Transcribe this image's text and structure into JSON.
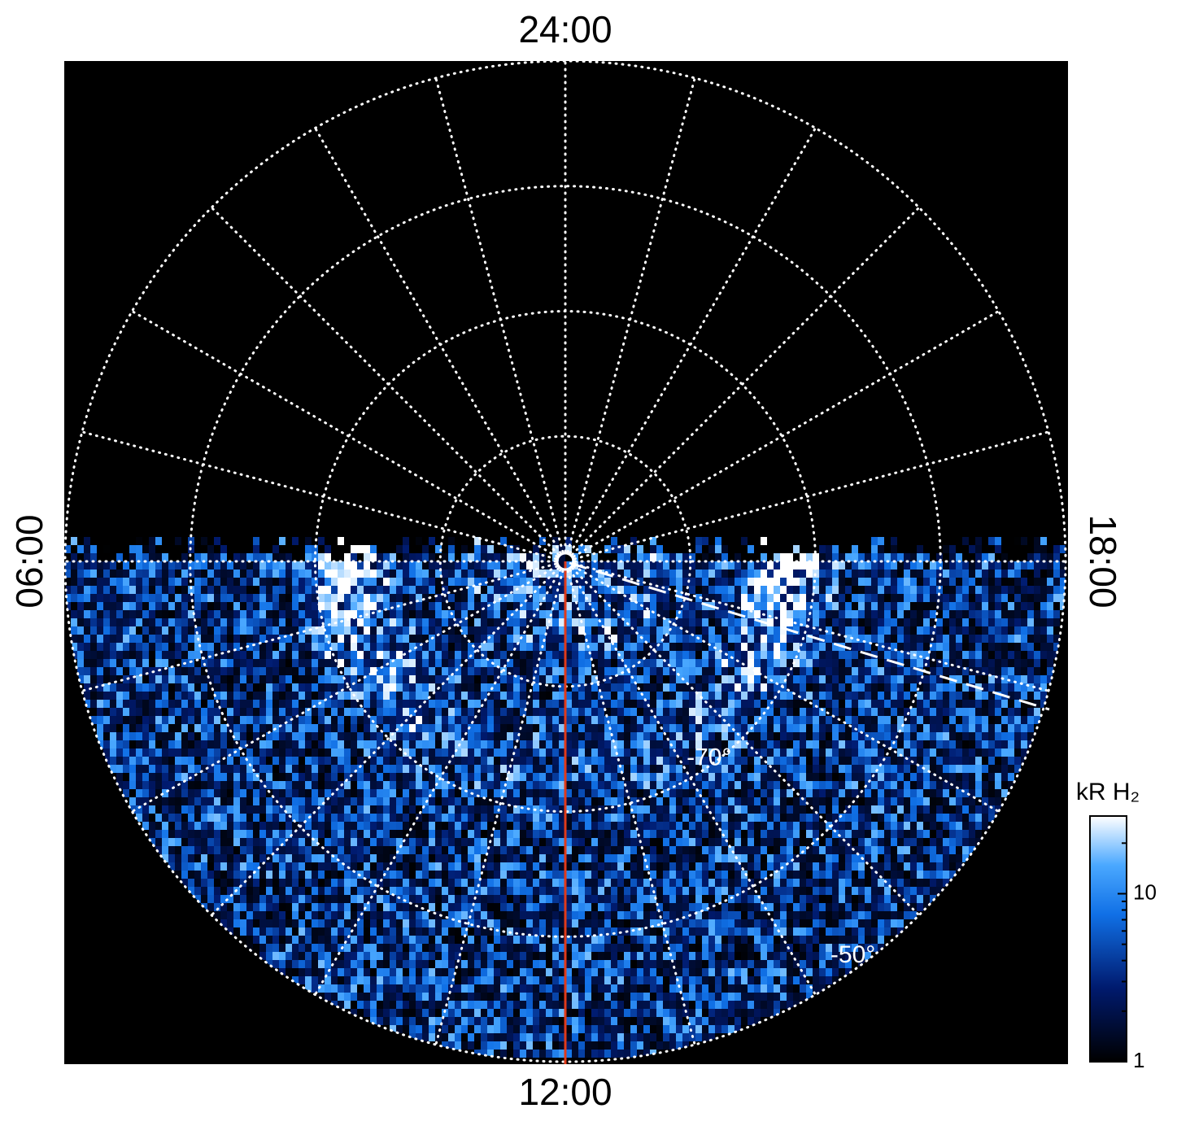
{
  "chart_data": {
    "type": "polar-map",
    "local_time_labels": {
      "top": "24:00",
      "left": "06:00",
      "right": "18:00",
      "bottom": "12:00"
    },
    "rlim": [
      -90,
      -50
    ],
    "rticks": [
      -80,
      {
        "value": -70,
        "label": "-70°"
      },
      -60,
      {
        "value": -50,
        "label": "-50°"
      }
    ],
    "colorbar": {
      "label": "kR H₂",
      "lim": [
        1,
        29
      ],
      "ticks": [
        1,
        10
      ],
      "log": true
    }
  }
}
